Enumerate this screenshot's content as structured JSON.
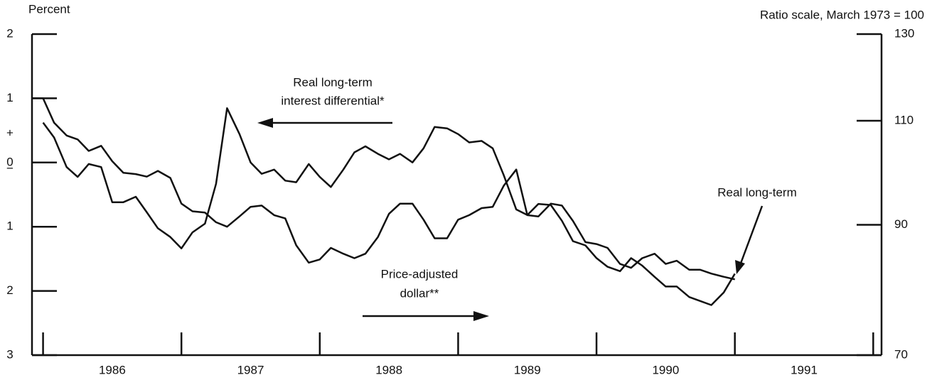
{
  "chart_data": {
    "type": "line",
    "left_axis_title": "Percent",
    "right_axis_title": "Ratio scale, March 1973 = 100",
    "annotations": [
      "Real long-term",
      "interest differential*",
      "Price-adjusted",
      "dollar**",
      "Real long-term"
    ],
    "left_axis_signs": [
      "+",
      "−"
    ],
    "x": [
      1985.92,
      1986.0,
      1986.08,
      1986.17,
      1986.25,
      1986.33,
      1986.42,
      1986.5,
      1986.58,
      1986.67,
      1986.75,
      1986.83,
      1986.92,
      1987.0,
      1987.08,
      1987.17,
      1987.25,
      1987.33,
      1987.42,
      1987.5,
      1987.58,
      1987.67,
      1987.75,
      1987.83,
      1987.92,
      1988.0,
      1988.08,
      1988.17,
      1988.25,
      1988.33,
      1988.42,
      1988.5,
      1988.58,
      1988.67,
      1988.75,
      1988.83,
      1988.92,
      1989.0,
      1989.08,
      1989.17,
      1989.25,
      1989.33,
      1989.42,
      1989.5,
      1989.58,
      1989.67,
      1989.75,
      1989.83,
      1989.92,
      1990.0,
      1990.08,
      1990.17,
      1990.25,
      1990.33,
      1990.42,
      1990.5,
      1990.58,
      1990.67,
      1990.75,
      1990.83,
      1990.92,
      1991.0
    ],
    "xlim": [
      1985.92,
      1992.06
    ],
    "xticks": [
      1986,
      1987,
      1988,
      1989,
      1990,
      1991,
      1992
    ],
    "x_labels": [
      "1986",
      "1987",
      "1988",
      "1989",
      "1990",
      "1991"
    ],
    "ylim": [
      -3,
      2
    ],
    "yticks": [
      2,
      1,
      0,
      {
        "value": -1,
        "label": "1"
      },
      {
        "value": -2,
        "label": "2"
      },
      {
        "value": -3,
        "label": "3"
      }
    ],
    "y2lim": [
      70,
      130
    ],
    "y2ticks": [
      70,
      90,
      110,
      130
    ],
    "y2_log": true,
    "series": [
      {
        "name": "Real long-term interest differential",
        "color": "#111111",
        "values": [
          1.0,
          1.0,
          0.62,
          0.42,
          0.36,
          0.18,
          0.26,
          0.02,
          -0.16,
          -0.18,
          -0.22,
          -0.13,
          -0.24,
          -0.64,
          -0.76,
          -0.78,
          -0.93,
          -1.0,
          -0.84,
          -0.69,
          -0.67,
          -0.82,
          -0.87,
          -1.29,
          -1.56,
          -1.51,
          -1.33,
          -1.42,
          -1.49,
          -1.42,
          -1.16,
          -0.8,
          -0.64,
          -0.64,
          -0.89,
          -1.18,
          -1.18,
          -0.89,
          -0.82,
          -0.71,
          -0.69,
          -0.36,
          -0.11,
          -0.82,
          -0.84,
          -0.64,
          -0.67,
          -0.91,
          -1.24,
          -1.27,
          -1.33,
          -1.58,
          -1.64,
          -1.49,
          -1.42,
          -1.58,
          -1.53,
          -1.67,
          -1.67,
          -1.73,
          -1.78,
          -1.82
        ]
      },
      {
        "name": "Price-adjusted dollar",
        "color": "#111111",
        "axis": "y2",
        "values": [
          null,
          109.6,
          106.5,
          100.6,
          98.7,
          101.2,
          100.6,
          94.0,
          94.0,
          95.0,
          92.2,
          89.4,
          87.9,
          86.0,
          88.7,
          90.2,
          97.4,
          112.7,
          107.2,
          101.5,
          99.3,
          100.1,
          98.0,
          97.7,
          101.2,
          98.7,
          96.8,
          100.1,
          103.5,
          104.7,
          103.2,
          102.1,
          103.2,
          101.5,
          104.3,
          108.7,
          108.4,
          107.2,
          105.5,
          105.8,
          104.3,
          99.0,
          92.7,
          91.7,
          93.7,
          93.5,
          90.7,
          87.2,
          86.5,
          84.4,
          83.0,
          82.3,
          84.4,
          83.2,
          81.4,
          79.9,
          79.9,
          78.3,
          77.7,
          77.1,
          79.0,
          81.9
        ]
      }
    ]
  }
}
